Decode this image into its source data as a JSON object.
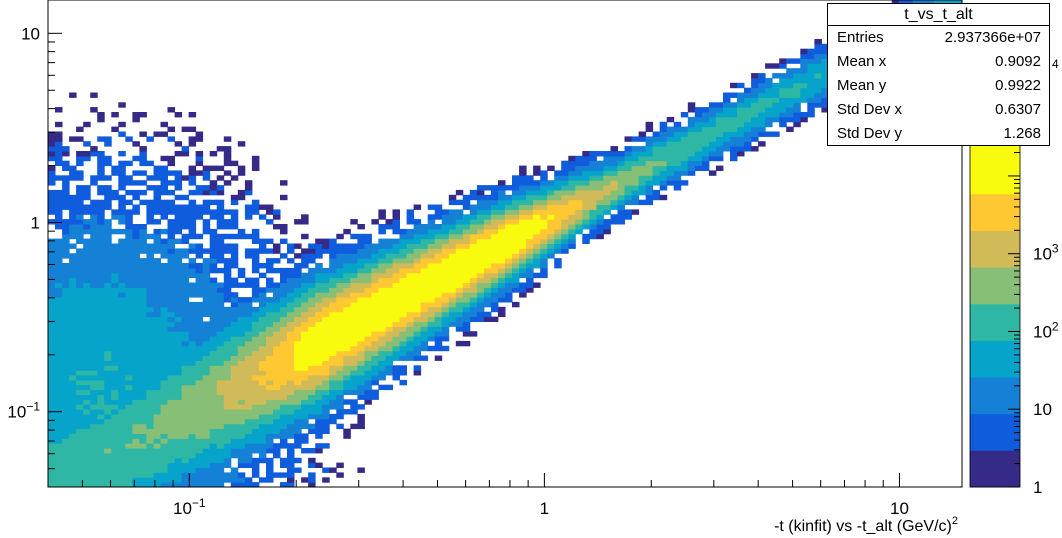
{
  "chart_data": {
    "type": "heatmap",
    "title": "",
    "xlabel": "-t (kinfit)  vs -t_alt (GeV/c)",
    "xlabel_sup": "2",
    "x_scale": "log",
    "y_scale": "log",
    "z_scale": "log",
    "xlim": [
      0.04,
      15
    ],
    "ylim": [
      0.04,
      15
    ],
    "zlim": [
      1,
      25000
    ],
    "x_ticks": [
      {
        "label": "10",
        "sup": "−1",
        "value": 0.1
      },
      {
        "label": "1",
        "value": 1
      },
      {
        "label": "10",
        "value": 10
      }
    ],
    "y_ticks": [
      {
        "label": "10",
        "sup": "−1",
        "value": 0.1
      },
      {
        "label": "1",
        "value": 1
      },
      {
        "label": "10",
        "value": 10
      }
    ],
    "z_ticks": [
      {
        "label": "1",
        "value": 1
      },
      {
        "label": "10",
        "value": 10
      },
      {
        "label": "10",
        "sup": "2",
        "value": 100
      },
      {
        "label": "10",
        "sup": "3",
        "value": 1000
      },
      {
        "label": "",
        "sup": "4",
        "value": 10000
      }
    ],
    "colormap": [
      "#352a87",
      "#0f5cdd",
      "#1481d6",
      "#06a4ca",
      "#2eb7a4",
      "#87bf77",
      "#d1bb59",
      "#fec832",
      "#f9fb0e"
    ],
    "density_model": "ridge along y≈x broadening toward low -t; peak near x≈0.45 at small y",
    "legend": "none",
    "grid": false
  },
  "stats": {
    "title": "t_vs_t_alt",
    "rows": [
      {
        "label": "Entries",
        "value": "2.937366e+07"
      },
      {
        "label": "Mean x",
        "value": "0.9092"
      },
      {
        "label": "Mean y",
        "value": "0.9922"
      },
      {
        "label": "Std Dev x",
        "value": "0.6307"
      },
      {
        "label": "Std Dev y",
        "value": "1.268"
      }
    ]
  }
}
